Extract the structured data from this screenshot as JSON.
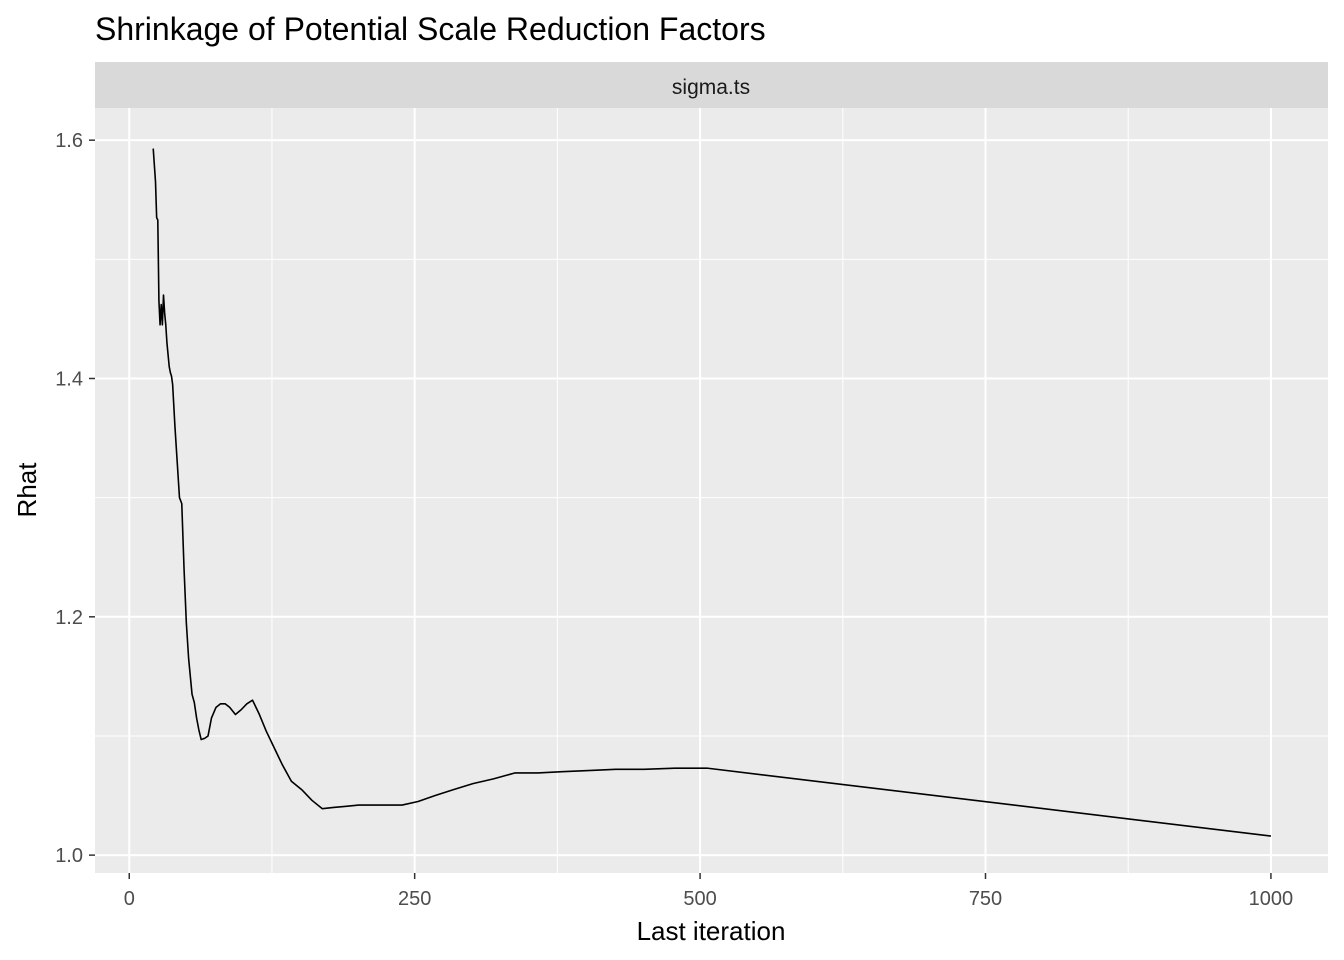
{
  "chart_data": {
    "type": "line",
    "title": "Shrinkage of Potential Scale Reduction Factors",
    "facet": "sigma.ts",
    "xlabel": "Last iteration",
    "ylabel": "Rhat",
    "xlim": [
      -30,
      1050
    ],
    "ylim": [
      0.985,
      1.627
    ],
    "x_ticks": [
      0,
      250,
      500,
      750,
      1000
    ],
    "x_tick_labels": [
      "0",
      "250",
      "500",
      "750",
      "1000"
    ],
    "y_ticks": [
      1.0,
      1.2,
      1.4,
      1.6
    ],
    "y_tick_labels": [
      "1.0",
      "1.2",
      "1.4",
      "1.6"
    ],
    "grid": true,
    "colors": {
      "panel": "#ebebeb",
      "strip": "#d9d9d9",
      "grid": "#ffffff",
      "line": "#000000"
    },
    "series": [
      {
        "x": [
          21,
          23,
          24,
          25,
          26,
          27,
          28,
          29,
          30,
          31,
          32,
          33,
          35,
          36,
          37,
          38,
          40,
          42,
          44,
          46,
          48,
          50,
          52,
          55,
          57,
          59,
          61,
          63,
          66,
          69,
          72,
          76,
          80,
          84,
          88,
          93,
          98,
          103,
          108,
          114,
          120,
          127,
          134,
          142,
          151,
          160,
          169,
          179,
          190,
          201,
          213,
          226,
          239,
          253,
          268,
          284,
          301,
          319,
          338,
          358,
          379,
          402,
          426,
          451,
          478,
          506,
          1000
        ],
        "y": [
          1.593,
          1.565,
          1.535,
          1.533,
          1.465,
          1.445,
          1.462,
          1.445,
          1.47,
          1.455,
          1.445,
          1.43,
          1.41,
          1.405,
          1.402,
          1.395,
          1.36,
          1.33,
          1.3,
          1.295,
          1.24,
          1.195,
          1.165,
          1.135,
          1.128,
          1.115,
          1.105,
          1.097,
          1.098,
          1.1,
          1.115,
          1.124,
          1.127,
          1.127,
          1.124,
          1.118,
          1.122,
          1.127,
          1.13,
          1.118,
          1.104,
          1.09,
          1.076,
          1.062,
          1.055,
          1.046,
          1.039,
          1.04,
          1.041,
          1.042,
          1.042,
          1.042,
          1.042,
          1.045,
          1.05,
          1.055,
          1.06,
          1.064,
          1.069,
          1.069,
          1.07,
          1.071,
          1.072,
          1.072,
          1.073,
          1.073,
          1.016
        ]
      }
    ]
  }
}
